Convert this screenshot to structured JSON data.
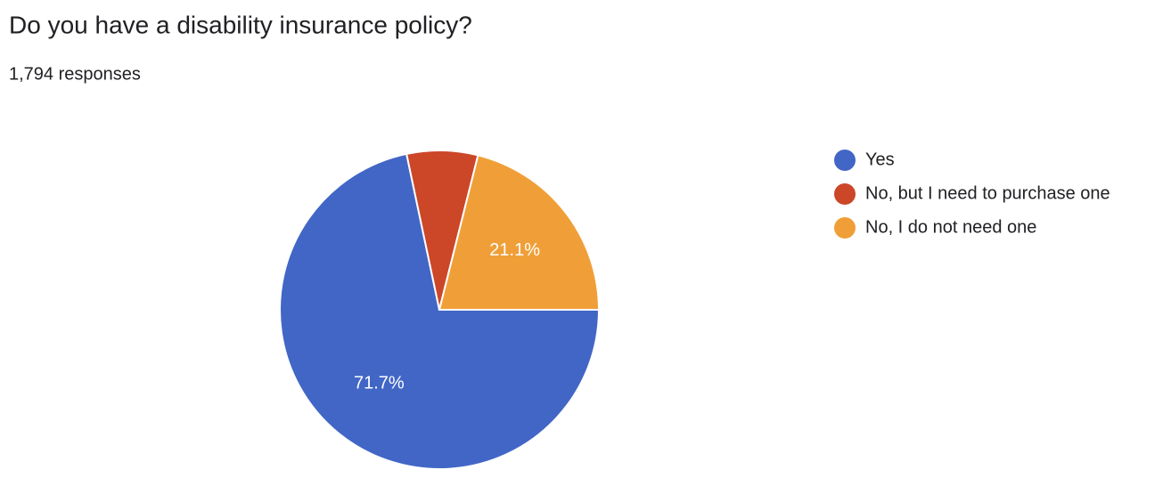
{
  "chart_data": {
    "type": "pie",
    "title": "Do you have a disability insurance policy?",
    "subtitle": "1,794 responses",
    "categories": [
      "Yes",
      "No, but I need to purchase one",
      "No, I do not need one"
    ],
    "values": [
      71.7,
      7.2,
      21.1
    ],
    "value_labels": [
      "71.7%",
      null,
      "21.1%"
    ],
    "colors": [
      "#4166c6",
      "#cc4628",
      "#f09f38"
    ],
    "legend": "right"
  }
}
